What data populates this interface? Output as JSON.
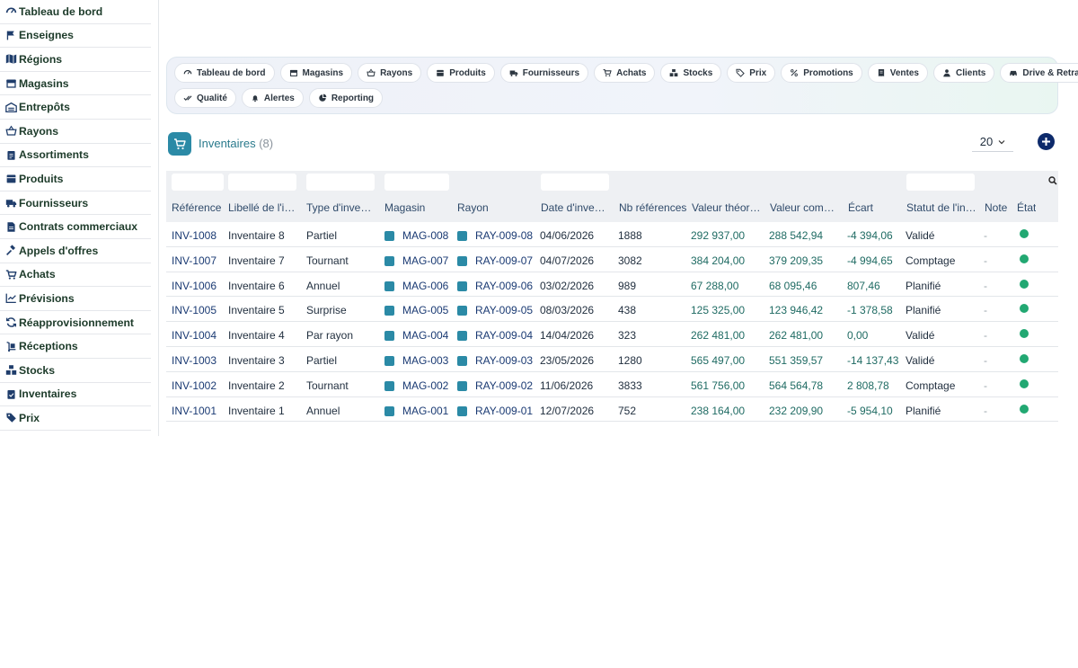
{
  "sidebar": {
    "items": [
      {
        "label": "Tableau de bord",
        "icon": "gauge-icon"
      },
      {
        "label": "Enseignes",
        "icon": "flag-icon"
      },
      {
        "label": "Régions",
        "icon": "map-icon"
      },
      {
        "label": "Magasins",
        "icon": "store-icon"
      },
      {
        "label": "Entrepôts",
        "icon": "warehouse-icon"
      },
      {
        "label": "Rayons",
        "icon": "basket-icon"
      },
      {
        "label": "Assortiments",
        "icon": "clipboard-icon"
      },
      {
        "label": "Produits",
        "icon": "box-icon"
      },
      {
        "label": "Fournisseurs",
        "icon": "truck-icon"
      },
      {
        "label": "Contrats commerciaux",
        "icon": "contract-icon"
      },
      {
        "label": "Appels d'offres",
        "icon": "gavel-icon"
      },
      {
        "label": "Achats",
        "icon": "cart-icon"
      },
      {
        "label": "Prévisions",
        "icon": "chart-line-icon"
      },
      {
        "label": "Réapprovisionnement",
        "icon": "refresh-icon"
      },
      {
        "label": "Réceptions",
        "icon": "dolly-icon"
      },
      {
        "label": "Stocks",
        "icon": "boxes-icon"
      },
      {
        "label": "Inventaires",
        "icon": "clipboard-check-icon"
      },
      {
        "label": "Prix",
        "icon": "tags-icon"
      }
    ]
  },
  "topnav": {
    "row1": [
      {
        "label": "Tableau de bord",
        "icon": "gauge-icon"
      },
      {
        "label": "Magasins",
        "icon": "store-icon"
      },
      {
        "label": "Rayons",
        "icon": "basket-icon"
      },
      {
        "label": "Produits",
        "icon": "box-icon"
      },
      {
        "label": "Fournisseurs",
        "icon": "truck-icon"
      },
      {
        "label": "Achats",
        "icon": "cart-icon"
      },
      {
        "label": "Stocks",
        "icon": "boxes-icon"
      },
      {
        "label": "Prix",
        "icon": "tag-icon"
      },
      {
        "label": "Promotions",
        "icon": "percent-icon"
      },
      {
        "label": "Ventes",
        "icon": "receipt-icon"
      },
      {
        "label": "Clients",
        "icon": "user-icon"
      },
      {
        "label": "Drive & Retrait",
        "icon": "car-icon"
      }
    ],
    "row2": [
      {
        "label": "Qualité",
        "icon": "check-double-icon"
      },
      {
        "label": "Alertes",
        "icon": "bell-icon"
      },
      {
        "label": "Reporting",
        "icon": "pie-chart-icon"
      }
    ]
  },
  "list": {
    "title": "Inventaires",
    "count": "(8)",
    "page_size": "20"
  },
  "table": {
    "columns": [
      "Référence",
      "Libellé de l'in…",
      "Type d'inven…",
      "Magasin",
      "Rayon",
      "Date d'inven…",
      "Nb références",
      "Valeur théori…",
      "Valeur comp…",
      "Écart",
      "Statut de l'in…",
      "Note",
      "État"
    ],
    "rows": [
      {
        "ref": "INV-1008",
        "label": "Inventaire 8",
        "type": "Partiel",
        "store": "MAG-008",
        "aisle": "RAY-009-08",
        "date": "04/06/2026",
        "nb": "1888",
        "theo": "292 937,00",
        "count": "288 542,94",
        "gap": "-4 394,06",
        "status": "Validé",
        "note": "-"
      },
      {
        "ref": "INV-1007",
        "label": "Inventaire 7",
        "type": "Tournant",
        "store": "MAG-007",
        "aisle": "RAY-009-07",
        "date": "04/07/2026",
        "nb": "3082",
        "theo": "384 204,00",
        "count": "379 209,35",
        "gap": "-4 994,65",
        "status": "Comptage",
        "note": "-"
      },
      {
        "ref": "INV-1006",
        "label": "Inventaire 6",
        "type": "Annuel",
        "store": "MAG-006",
        "aisle": "RAY-009-06",
        "date": "03/02/2026",
        "nb": "989",
        "theo": "67 288,00",
        "count": "68 095,46",
        "gap": "807,46",
        "status": "Planifié",
        "note": "-"
      },
      {
        "ref": "INV-1005",
        "label": "Inventaire 5",
        "type": "Surprise",
        "store": "MAG-005",
        "aisle": "RAY-009-05",
        "date": "08/03/2026",
        "nb": "438",
        "theo": "125 325,00",
        "count": "123 946,42",
        "gap": "-1 378,58",
        "status": "Planifié",
        "note": "-"
      },
      {
        "ref": "INV-1004",
        "label": "Inventaire 4",
        "type": "Par rayon",
        "store": "MAG-004",
        "aisle": "RAY-009-04",
        "date": "14/04/2026",
        "nb": "323",
        "theo": "262 481,00",
        "count": "262 481,00",
        "gap": "0,00",
        "status": "Validé",
        "note": "-"
      },
      {
        "ref": "INV-1003",
        "label": "Inventaire 3",
        "type": "Partiel",
        "store": "MAG-003",
        "aisle": "RAY-009-03",
        "date": "23/05/2026",
        "nb": "1280",
        "theo": "565 497,00",
        "count": "551 359,57",
        "gap": "-14 137,43",
        "status": "Validé",
        "note": "-"
      },
      {
        "ref": "INV-1002",
        "label": "Inventaire 2",
        "type": "Tournant",
        "store": "MAG-002",
        "aisle": "RAY-009-02",
        "date": "11/06/2026",
        "nb": "3833",
        "theo": "561 756,00",
        "count": "564 564,78",
        "gap": "2 808,78",
        "status": "Comptage",
        "note": "-"
      },
      {
        "ref": "INV-1001",
        "label": "Inventaire 1",
        "type": "Annuel",
        "store": "MAG-001",
        "aisle": "RAY-009-01",
        "date": "12/07/2026",
        "nb": "752",
        "theo": "238 164,00",
        "count": "232 209,90",
        "gap": "-5 954,10",
        "status": "Planifié",
        "note": "-"
      }
    ]
  },
  "colors": {
    "accent": "#2b8aa6",
    "status_ok": "#22a872",
    "primary": "#0d2a6b"
  }
}
